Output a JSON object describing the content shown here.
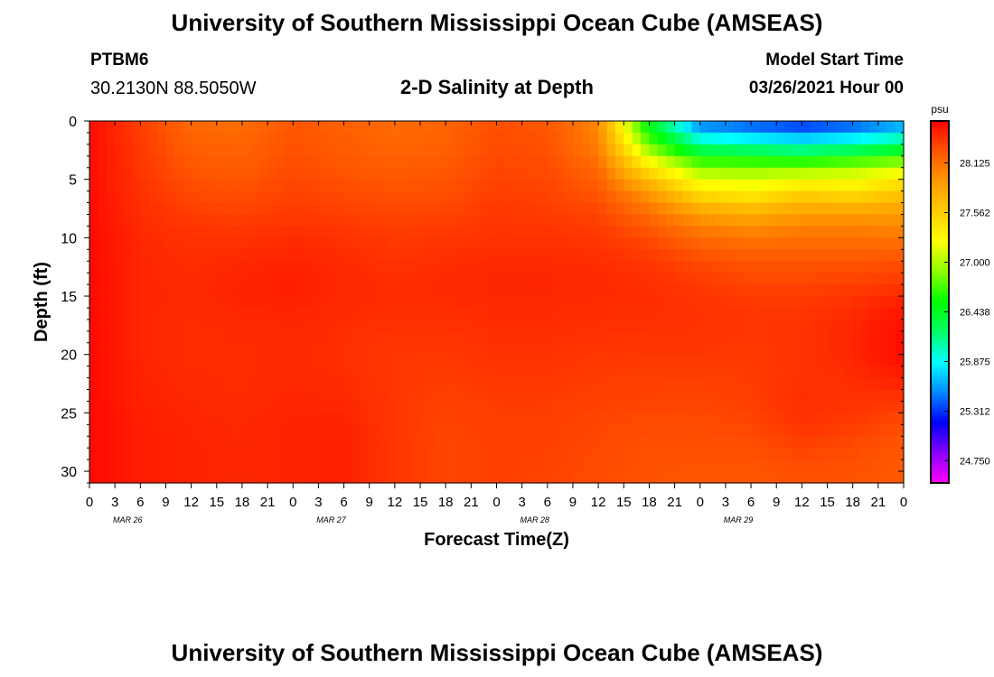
{
  "header": {
    "title": "University of Southern Mississippi Ocean Cube (AMSEAS)",
    "station": "PTBM6",
    "coordinates": "30.2130N  88.5050W",
    "subtitle": "2-D Salinity at Depth",
    "model_start_label": "Model Start Time",
    "model_start_value": "03/26/2021 Hour 00"
  },
  "footer": {
    "title": "University of Southern Mississippi Ocean Cube (AMSEAS)"
  },
  "colors": {
    "colormap": [
      "#ff00ff",
      "#8800ff",
      "#0000ff",
      "#0088ff",
      "#00ffff",
      "#00ff66",
      "#00ff00",
      "#88ff00",
      "#ffff00",
      "#ffcc00",
      "#ff9900",
      "#ff5500",
      "#ff0000"
    ]
  },
  "chart_data": {
    "type": "heatmap",
    "xlabel": "Forecast Time(Z)",
    "ylabel": "Depth (ft)",
    "x_hours": [
      0,
      96
    ],
    "x_tick_labels": [
      "0",
      "3",
      "6",
      "9",
      "12",
      "15",
      "18",
      "21",
      "0",
      "3",
      "6",
      "9",
      "12",
      "15",
      "18",
      "21",
      "0",
      "3",
      "6",
      "9",
      "12",
      "15",
      "18",
      "21",
      "0",
      "3",
      "6",
      "9",
      "12",
      "15",
      "18",
      "21",
      "0"
    ],
    "day_labels": [
      "MAR 26",
      "MAR 27",
      "MAR 28",
      "MAR 29"
    ],
    "y_ticks": [
      0,
      5,
      10,
      15,
      20,
      25,
      30
    ],
    "ylim": [
      0,
      31
    ],
    "colorbar": {
      "unit": "psu",
      "tick_labels": [
        "28.125",
        "27.562",
        "27.000",
        "26.438",
        "25.875",
        "25.312",
        "24.750"
      ],
      "range": [
        24.5,
        28.6
      ]
    },
    "depths": [
      0,
      2,
      4,
      6,
      8,
      10,
      12,
      14,
      16,
      18,
      20,
      22,
      24,
      26,
      28,
      30
    ],
    "hours": [
      0,
      6,
      12,
      18,
      24,
      30,
      36,
      42,
      48,
      54,
      60,
      66,
      72,
      78,
      84,
      90,
      96
    ],
    "salinity": [
      [
        28.55,
        28.35,
        28.15,
        28.13,
        28.25,
        28.2,
        28.14,
        28.18,
        28.28,
        28.25,
        28.0,
        26.4,
        25.4,
        25.3,
        25.2,
        25.3,
        25.5
      ],
      [
        28.55,
        28.37,
        28.2,
        28.18,
        28.27,
        28.22,
        28.17,
        28.2,
        28.3,
        28.27,
        28.05,
        26.8,
        26.1,
        26.0,
        25.9,
        26.0,
        26.2
      ],
      [
        28.55,
        28.38,
        28.25,
        28.22,
        28.3,
        28.25,
        28.22,
        28.24,
        28.32,
        28.3,
        28.15,
        27.4,
        26.9,
        26.9,
        26.9,
        27.0,
        27.1
      ],
      [
        28.55,
        28.4,
        28.3,
        28.28,
        28.33,
        28.3,
        28.27,
        28.28,
        28.35,
        28.33,
        28.25,
        27.9,
        27.4,
        27.3,
        27.5,
        27.4,
        27.6
      ],
      [
        28.55,
        28.42,
        28.36,
        28.34,
        28.37,
        28.35,
        28.32,
        28.33,
        28.38,
        28.36,
        28.33,
        28.15,
        27.9,
        27.8,
        27.9,
        27.9,
        27.9
      ],
      [
        28.56,
        28.44,
        28.4,
        28.4,
        28.42,
        28.4,
        28.37,
        28.38,
        28.4,
        28.4,
        28.38,
        28.3,
        28.15,
        28.1,
        28.12,
        28.12,
        28.1
      ],
      [
        28.56,
        28.45,
        28.42,
        28.44,
        28.46,
        28.43,
        28.4,
        28.42,
        28.43,
        28.43,
        28.42,
        28.38,
        28.3,
        28.25,
        28.25,
        28.25,
        28.28
      ],
      [
        28.56,
        28.45,
        28.43,
        28.46,
        28.48,
        28.44,
        28.42,
        28.43,
        28.45,
        28.45,
        28.43,
        28.42,
        28.37,
        28.33,
        28.33,
        28.35,
        28.38
      ],
      [
        28.56,
        28.45,
        28.43,
        28.45,
        28.46,
        28.43,
        28.42,
        28.42,
        28.43,
        28.43,
        28.42,
        28.42,
        28.4,
        28.38,
        28.38,
        28.42,
        28.5
      ],
      [
        28.56,
        28.45,
        28.42,
        28.43,
        28.44,
        28.42,
        28.4,
        28.4,
        28.42,
        28.42,
        28.41,
        28.4,
        28.4,
        28.38,
        28.4,
        28.45,
        28.55
      ],
      [
        28.56,
        28.45,
        28.42,
        28.42,
        28.43,
        28.41,
        28.38,
        28.38,
        28.4,
        28.4,
        28.38,
        28.38,
        28.38,
        28.37,
        28.4,
        28.45,
        28.55
      ],
      [
        28.56,
        28.46,
        28.43,
        28.42,
        28.44,
        28.42,
        28.38,
        28.36,
        28.38,
        28.38,
        28.36,
        28.35,
        28.35,
        28.36,
        28.4,
        28.42,
        28.48
      ],
      [
        28.56,
        28.47,
        28.44,
        28.43,
        28.45,
        28.44,
        28.38,
        28.34,
        28.36,
        28.36,
        28.34,
        28.33,
        28.32,
        28.35,
        28.42,
        28.4,
        28.38
      ],
      [
        28.56,
        28.48,
        28.45,
        28.44,
        28.46,
        28.46,
        28.38,
        28.33,
        28.35,
        28.35,
        28.32,
        28.3,
        28.3,
        28.32,
        28.4,
        28.36,
        28.3
      ],
      [
        28.56,
        28.48,
        28.46,
        28.44,
        28.46,
        28.47,
        28.38,
        28.32,
        28.34,
        28.34,
        28.31,
        28.28,
        28.28,
        28.28,
        28.33,
        28.3,
        28.25
      ],
      [
        28.56,
        28.48,
        28.46,
        28.44,
        28.46,
        28.47,
        28.38,
        28.32,
        28.34,
        28.33,
        28.3,
        28.27,
        28.26,
        28.26,
        28.28,
        28.27,
        28.24
      ]
    ]
  }
}
